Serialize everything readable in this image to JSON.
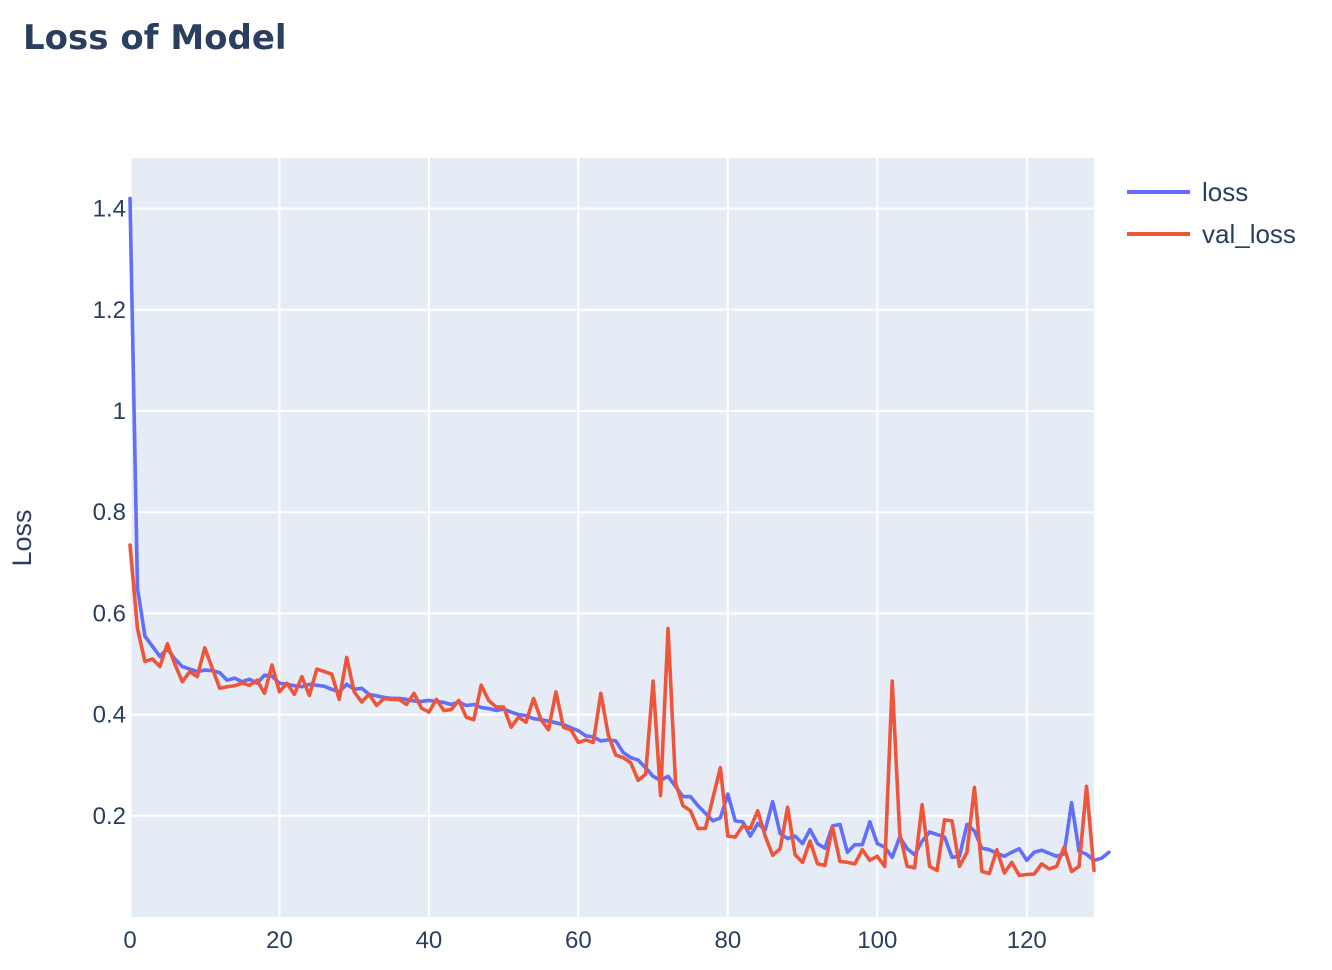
{
  "chart_data": {
    "type": "line",
    "title": "Loss of Model",
    "xlabel": "",
    "ylabel": "Loss",
    "xlim": [
      0,
      129
    ],
    "ylim": [
      0,
      1.5
    ],
    "x_ticks": [
      0,
      20,
      40,
      60,
      80,
      100,
      120
    ],
    "x_tick_labels": [
      "0",
      "20",
      "40",
      "60",
      "80",
      "100",
      "120"
    ],
    "y_ticks": [
      0.2,
      0.4,
      0.6,
      0.8,
      1.0,
      1.2,
      1.4
    ],
    "y_tick_labels": [
      "0.2",
      "0.4",
      "0.6",
      "0.8",
      "1",
      "1.2",
      "1.4"
    ],
    "grid": true,
    "legend_position": "top-right",
    "series": [
      {
        "name": "loss",
        "color": "#636efa",
        "values": [
          1.42,
          0.65,
          0.555,
          0.535,
          0.515,
          0.53,
          0.51,
          0.495,
          0.49,
          0.485,
          0.488,
          0.487,
          0.483,
          0.468,
          0.472,
          0.465,
          0.47,
          0.462,
          0.478,
          0.476,
          0.462,
          0.46,
          0.457,
          0.455,
          0.46,
          0.458,
          0.456,
          0.45,
          0.445,
          0.46,
          0.45,
          0.452,
          0.44,
          0.437,
          0.434,
          0.432,
          0.432,
          0.43,
          0.427,
          0.426,
          0.428,
          0.426,
          0.424,
          0.42,
          0.425,
          0.418,
          0.42,
          0.414,
          0.412,
          0.408,
          0.411,
          0.405,
          0.4,
          0.398,
          0.392,
          0.39,
          0.387,
          0.384,
          0.38,
          0.374,
          0.368,
          0.358,
          0.356,
          0.348,
          0.35,
          0.348,
          0.325,
          0.315,
          0.31,
          0.295,
          0.278,
          0.27,
          0.278,
          0.258,
          0.238,
          0.238,
          0.22,
          0.205,
          0.19,
          0.196,
          0.243,
          0.19,
          0.188,
          0.16,
          0.185,
          0.172,
          0.228,
          0.165,
          0.155,
          0.16,
          0.145,
          0.173,
          0.145,
          0.136,
          0.18,
          0.183,
          0.128,
          0.143,
          0.143,
          0.188,
          0.145,
          0.138,
          0.118,
          0.158,
          0.135,
          0.123,
          0.15,
          0.168,
          0.163,
          0.158,
          0.118,
          0.12,
          0.183,
          0.17,
          0.136,
          0.133,
          0.126,
          0.12,
          0.128,
          0.135,
          0.112,
          0.128,
          0.132,
          0.126,
          0.12,
          0.125,
          0.226,
          0.13,
          0.124,
          0.112,
          0.116,
          0.128
        ]
      },
      {
        "name": "val_loss",
        "color": "#ef553b",
        "values": [
          0.735,
          0.57,
          0.505,
          0.51,
          0.495,
          0.54,
          0.5,
          0.465,
          0.485,
          0.475,
          0.532,
          0.492,
          0.452,
          0.455,
          0.457,
          0.462,
          0.458,
          0.468,
          0.442,
          0.498,
          0.445,
          0.462,
          0.44,
          0.475,
          0.438,
          0.49,
          0.485,
          0.48,
          0.43,
          0.513,
          0.445,
          0.425,
          0.44,
          0.418,
          0.432,
          0.43,
          0.43,
          0.42,
          0.442,
          0.413,
          0.405,
          0.43,
          0.408,
          0.41,
          0.428,
          0.395,
          0.39,
          0.458,
          0.428,
          0.415,
          0.415,
          0.375,
          0.395,
          0.385,
          0.432,
          0.39,
          0.37,
          0.445,
          0.375,
          0.37,
          0.345,
          0.35,
          0.345,
          0.442,
          0.36,
          0.32,
          0.315,
          0.305,
          0.27,
          0.282,
          0.466,
          0.24,
          0.57,
          0.265,
          0.22,
          0.21,
          0.175,
          0.175,
          0.235,
          0.295,
          0.16,
          0.158,
          0.18,
          0.175,
          0.21,
          0.16,
          0.122,
          0.135,
          0.217,
          0.123,
          0.108,
          0.15,
          0.105,
          0.102,
          0.178,
          0.11,
          0.108,
          0.105,
          0.133,
          0.112,
          0.12,
          0.1,
          0.466,
          0.165,
          0.1,
          0.097,
          0.222,
          0.1,
          0.092,
          0.192,
          0.19,
          0.1,
          0.128,
          0.256,
          0.09,
          0.086,
          0.133,
          0.087,
          0.108,
          0.082,
          0.084,
          0.085,
          0.105,
          0.095,
          0.1,
          0.138,
          0.09,
          0.1,
          0.258,
          0.092
        ]
      }
    ]
  }
}
